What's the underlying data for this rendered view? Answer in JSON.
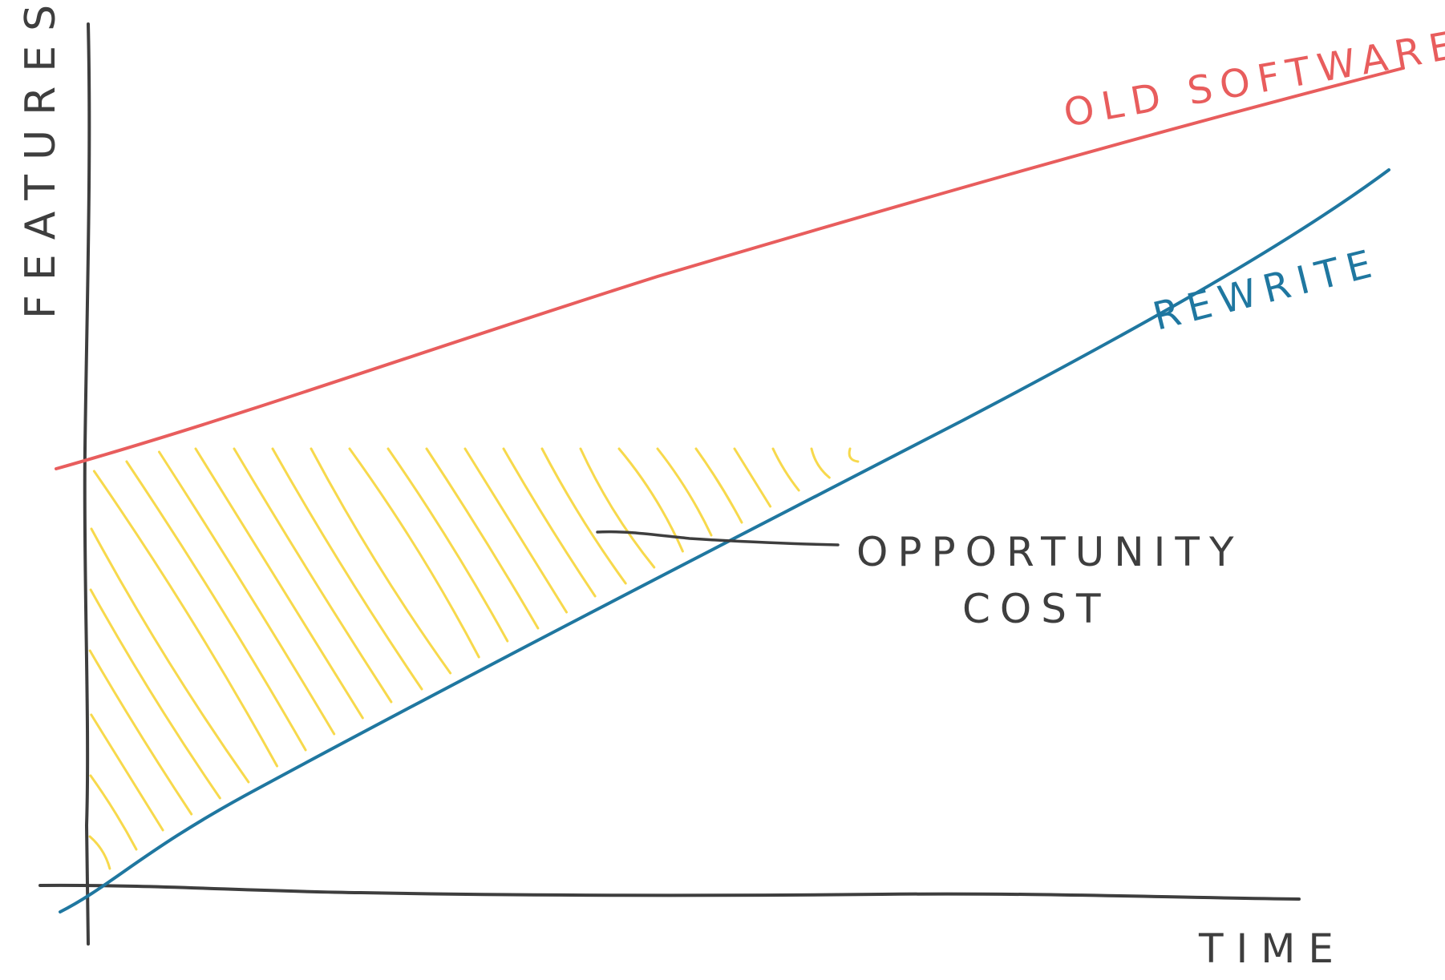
{
  "diagram": {
    "y_axis_label": "FEATURES",
    "x_axis_label": "TIME",
    "series": [
      {
        "name": "OLD SOFTWARE",
        "color": "#e85d5d"
      },
      {
        "name": "REWRITE",
        "color": "#1f77a0"
      }
    ],
    "annotation": {
      "line1": "OPPORTUNITY",
      "line2": "COST"
    },
    "hatch_color": "#f7d94c",
    "axis_color": "#3e3e3e"
  }
}
